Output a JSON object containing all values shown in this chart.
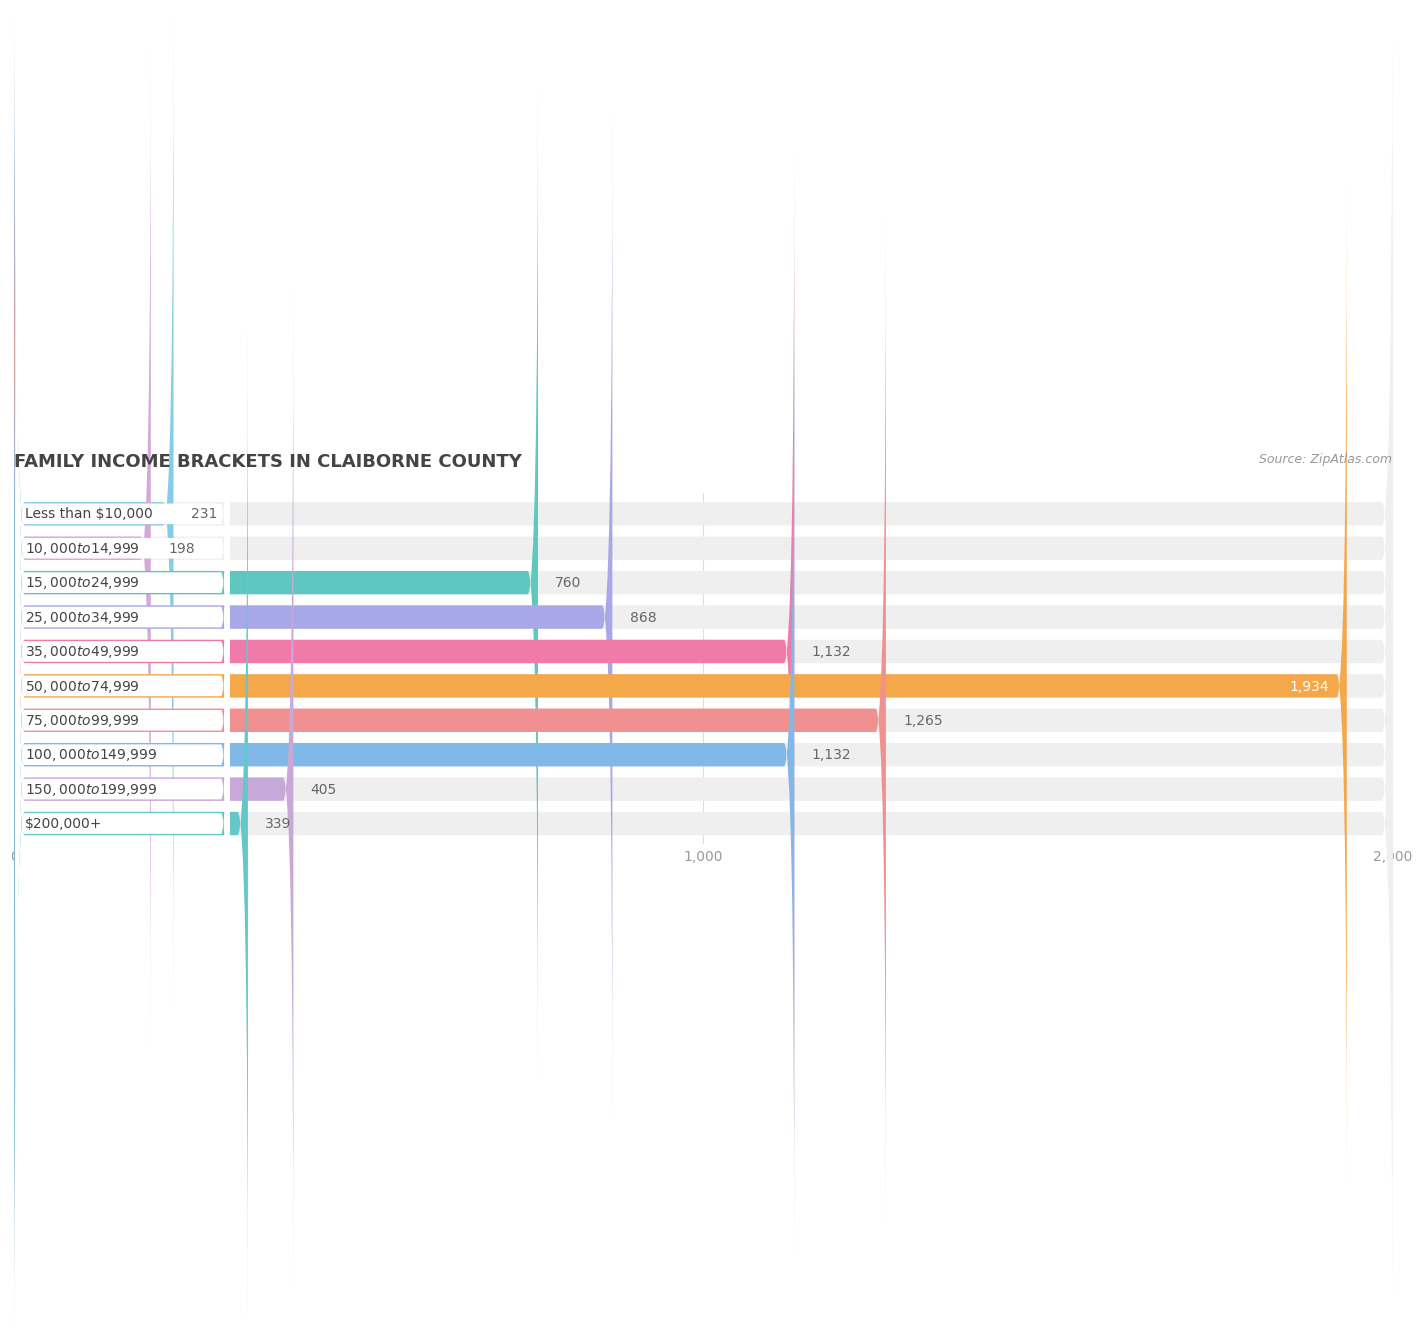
{
  "title": "Family Income Brackets in Claiborne County",
  "title_display": "FAMILY INCOME BRACKETS IN CLAIBORNE COUNTY",
  "source": "Source: ZipAtlas.com",
  "categories": [
    "Less than $10,000",
    "$10,000 to $14,999",
    "$15,000 to $24,999",
    "$25,000 to $34,999",
    "$35,000 to $49,999",
    "$50,000 to $74,999",
    "$75,000 to $99,999",
    "$100,000 to $149,999",
    "$150,000 to $199,999",
    "$200,000+"
  ],
  "values": [
    231,
    198,
    760,
    868,
    1132,
    1934,
    1265,
    1132,
    405,
    339
  ],
  "bar_colors": [
    "#85cce8",
    "#d4a8d8",
    "#5ec8c0",
    "#a8a8e8",
    "#f07aaa",
    "#f5a84a",
    "#f09090",
    "#80b8e8",
    "#c8a8d8",
    "#65c8c8"
  ],
  "bar_height": 0.68,
  "xlim": [
    0,
    2000
  ],
  "xticks": [
    0,
    1000,
    2000
  ],
  "xtick_labels": [
    "0",
    "1,000",
    "2,000"
  ],
  "title_fontsize": 13,
  "label_fontsize": 10,
  "value_fontsize": 10,
  "bg_color": "#ffffff",
  "bar_bg_color": "#efefef",
  "title_color": "#444444",
  "label_color": "#444444",
  "value_color_inside": "#ffffff",
  "value_color_outside": "#666666",
  "grid_color": "#dddddd",
  "source_color": "#999999"
}
